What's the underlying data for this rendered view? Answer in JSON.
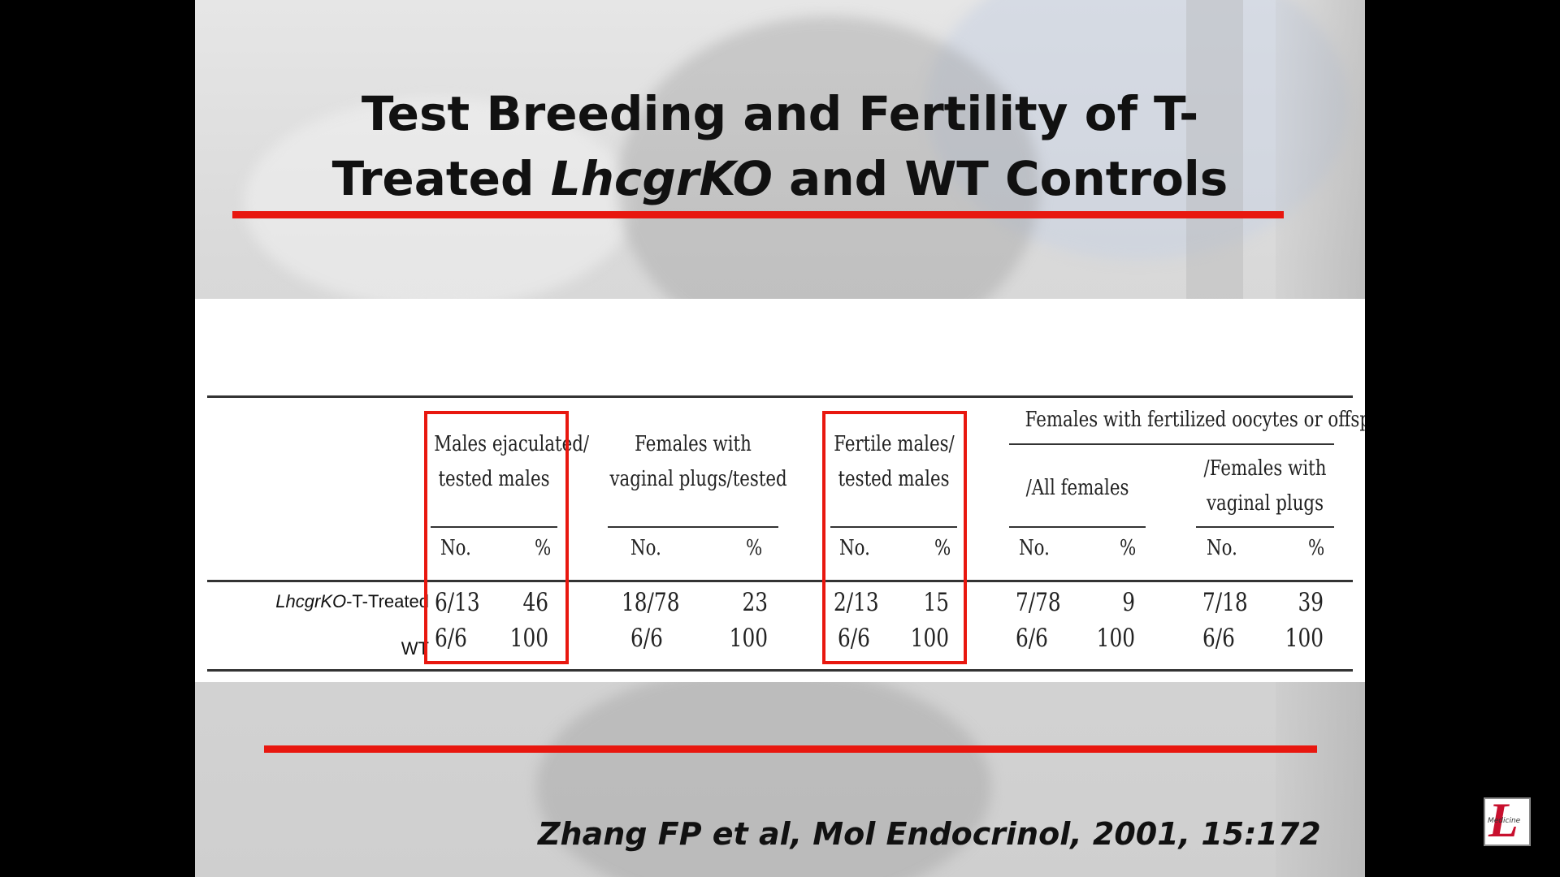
{
  "title": {
    "line1": "Test Breeding and Fertility of T-",
    "line2_pre": "Treated ",
    "line2_italic": "LhcgrKO",
    "line2_post": " and WT Controls"
  },
  "table": {
    "headers": {
      "males_ejaculated_line1": "Males ejaculated/",
      "males_ejaculated_line2": "tested males",
      "females_plugs_line1": "Females with",
      "females_plugs_line2": "vaginal plugs/tested",
      "fertile_males_line1": "Fertile males/",
      "fertile_males_line2": "tested males",
      "females_fertilized": "Females with fertilized oocytes or offspring",
      "all_females": "/All females",
      "females_with_plugs_line1": "/Females with",
      "females_with_plugs_line2": "vaginal plugs"
    },
    "sub_no": "No.",
    "sub_pct": "%",
    "rows": [
      {
        "label_italic": "LhcgrKO",
        "label_rest": "-T-Treated",
        "values": [
          "6/13",
          "46",
          "18/78",
          "23",
          "2/13",
          "15",
          "7/78",
          "9",
          "7/18",
          "39"
        ]
      },
      {
        "label_italic": "",
        "label_rest": "WT",
        "values": [
          "6/6",
          "100",
          "6/6",
          "100",
          "6/6",
          "100",
          "6/6",
          "100",
          "6/6",
          "100"
        ]
      }
    ]
  },
  "citation": "Zhang FP et al, Mol Endocrinol, 2001, 15:172",
  "logo": {
    "letter": "L",
    "word": "Medicine"
  },
  "colors": {
    "accent": "#e8170f",
    "background": "#000000"
  }
}
